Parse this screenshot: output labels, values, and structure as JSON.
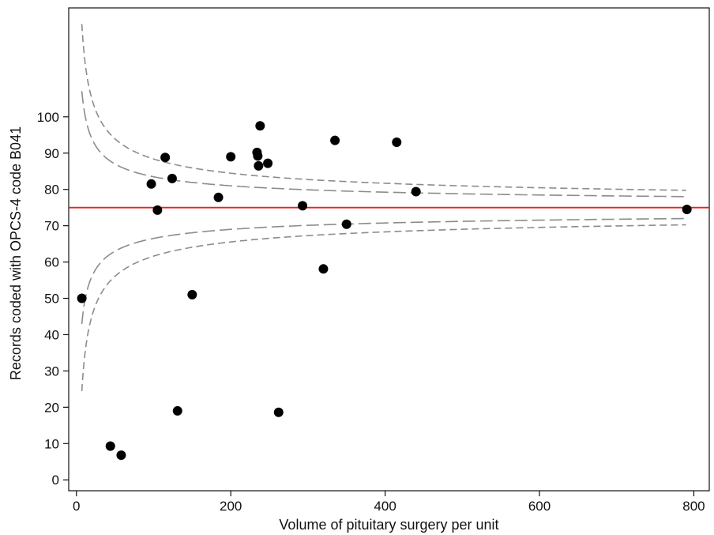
{
  "chart_data": {
    "type": "scatter",
    "title": "",
    "xlabel": "Volume of pituitary surgery per unit",
    "ylabel": "Records coded with OPCS-4 code B041",
    "xlim": [
      -10,
      820
    ],
    "ylim": [
      -3,
      130
    ],
    "xticks": [
      0,
      200,
      400,
      600,
      800
    ],
    "yticks": [
      0,
      10,
      20,
      30,
      40,
      50,
      60,
      70,
      80,
      90,
      100
    ],
    "grid": false,
    "legend": "none",
    "target_line": {
      "y": 75,
      "color": "#e8211d"
    },
    "funnel_limits": {
      "mean": 75,
      "inner_z": 1.96,
      "outer_z": 3.09,
      "x_start": 7,
      "x_end": 790,
      "color": "#8c8c8c"
    },
    "points": {
      "x": [
        7,
        44,
        58,
        97,
        105,
        115,
        124,
        131,
        150,
        184,
        200,
        234,
        235,
        236,
        238,
        248,
        262,
        293,
        320,
        335,
        350,
        415,
        440,
        791
      ],
      "y": [
        50,
        9.3,
        6.8,
        81.5,
        74.3,
        88.8,
        83,
        19,
        51,
        77.8,
        89,
        90.2,
        89.2,
        86.5,
        97.5,
        87.2,
        18.6,
        75.5,
        58.1,
        93.5,
        70.4,
        93,
        79.4,
        74.5
      ]
    }
  }
}
